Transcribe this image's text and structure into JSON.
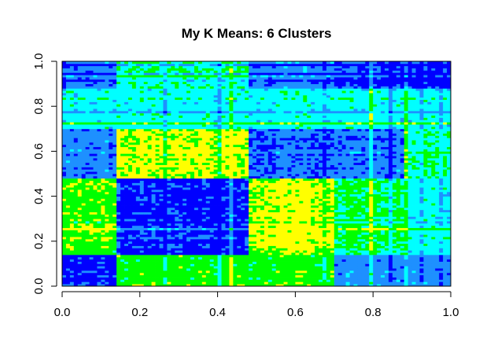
{
  "chart_data": {
    "type": "heatmap",
    "title": "My K Means: 6 Clusters",
    "xlabel": "",
    "ylabel": "",
    "xlim": [
      0,
      1
    ],
    "ylim": [
      0,
      1
    ],
    "x_ticks": [
      "0.0",
      "0.2",
      "0.4",
      "0.6",
      "0.8",
      "1.0"
    ],
    "y_ticks": [
      "0.0",
      "0.2",
      "0.4",
      "0.6",
      "0.8",
      "1.0"
    ],
    "grid": false,
    "legend": "none",
    "colors": {
      "high_similarity": "#0000ff",
      "mid_low": "#1e90ff",
      "mid": "#00ffff",
      "mid_high": "#00ff00",
      "low_similarity": "#ffff00"
    },
    "cluster_boundaries": [
      0.0,
      0.145,
      0.48,
      0.7,
      0.885,
      1.0
    ],
    "blocks": [
      {
        "x": [
          0.0,
          0.145
        ],
        "y": [
          0.0,
          0.145
        ],
        "level": 0.05
      },
      {
        "x": [
          0.145,
          0.48
        ],
        "y": [
          0.0,
          0.145
        ],
        "level": 0.75
      },
      {
        "x": [
          0.48,
          0.7
        ],
        "y": [
          0.0,
          0.145
        ],
        "level": 0.75
      },
      {
        "x": [
          0.7,
          0.885
        ],
        "y": [
          0.0,
          0.145
        ],
        "level": 0.25
      },
      {
        "x": [
          0.885,
          1.0
        ],
        "y": [
          0.0,
          0.145
        ],
        "level": 0.25
      },
      {
        "x": [
          0.0,
          0.145
        ],
        "y": [
          0.145,
          0.48
        ],
        "level": 0.8
      },
      {
        "x": [
          0.145,
          0.48
        ],
        "y": [
          0.145,
          0.48
        ],
        "level": 0.05
      },
      {
        "x": [
          0.48,
          0.7
        ],
        "y": [
          0.145,
          0.48
        ],
        "level": 0.92
      },
      {
        "x": [
          0.7,
          0.885
        ],
        "y": [
          0.145,
          0.48
        ],
        "level": 0.65
      },
      {
        "x": [
          0.885,
          1.0
        ],
        "y": [
          0.145,
          0.48
        ],
        "level": 0.5
      },
      {
        "x": [
          0.0,
          0.145
        ],
        "y": [
          0.48,
          0.815
        ],
        "level": 0.22
      },
      {
        "x": [
          0.145,
          0.48
        ],
        "y": [
          0.48,
          0.815
        ],
        "level": 0.9
      },
      {
        "x": [
          0.48,
          0.7
        ],
        "y": [
          0.48,
          0.815
        ],
        "level": 0.15
      },
      {
        "x": [
          0.7,
          0.885
        ],
        "y": [
          0.48,
          0.815
        ],
        "level": 0.18
      },
      {
        "x": [
          0.885,
          1.0
        ],
        "y": [
          0.48,
          0.815
        ],
        "level": 0.6
      },
      {
        "x": [
          0.0,
          0.145
        ],
        "y": [
          0.815,
          1.0
        ],
        "level": 0.2
      },
      {
        "x": [
          0.145,
          0.48
        ],
        "y": [
          0.815,
          1.0
        ],
        "level": 0.6
      },
      {
        "x": [
          0.48,
          0.7
        ],
        "y": [
          0.815,
          1.0
        ],
        "level": 0.25
      },
      {
        "x": [
          0.7,
          0.885
        ],
        "y": [
          0.815,
          1.0
        ],
        "level": 0.1
      },
      {
        "x": [
          0.885,
          1.0
        ],
        "y": [
          0.815,
          1.0
        ],
        "level": 0.05
      }
    ]
  }
}
